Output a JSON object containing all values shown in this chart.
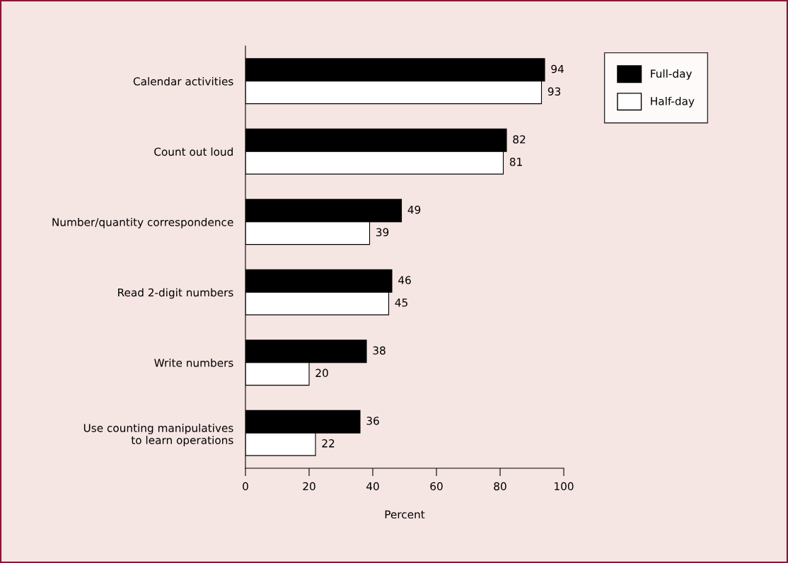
{
  "chart_data": {
    "type": "bar",
    "orientation": "horizontal",
    "xlabel": "Percent",
    "categories": [
      "Calendar activities",
      "Count out loud",
      "Number/quantity correspondence",
      "Read 2-digit numbers",
      "Write numbers",
      "Use counting manipulatives\nto learn operations"
    ],
    "series": [
      {
        "name": "Full-day",
        "color": "#000000",
        "values": [
          94,
          82,
          49,
          46,
          38,
          36
        ]
      },
      {
        "name": "Half-day",
        "color": "#ffffff",
        "values": [
          93,
          81,
          39,
          45,
          20,
          22
        ]
      }
    ],
    "xlim": [
      0,
      100
    ],
    "xticks": [
      0,
      20,
      40,
      60,
      80,
      100
    ],
    "data_labels": true,
    "grid": false,
    "legend": "top right"
  }
}
